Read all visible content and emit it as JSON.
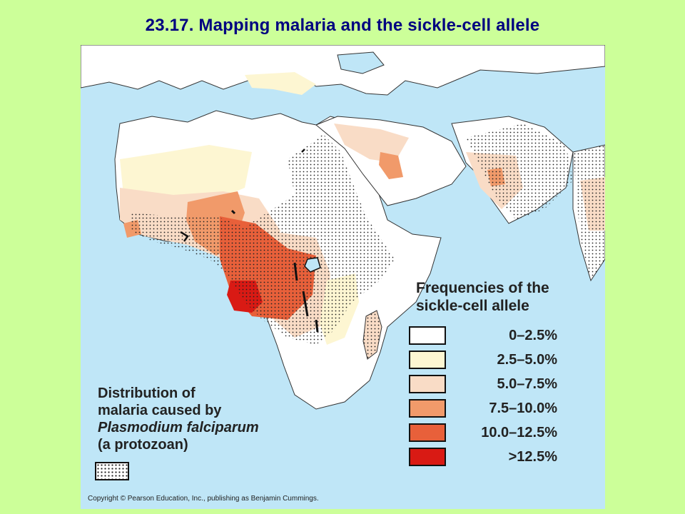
{
  "title": "23.17.  Mapping malaria and the sickle-cell allele",
  "legend": {
    "title_line1": "Frequencies of the",
    "title_line2": "sickle-cell allele",
    "items": [
      {
        "label": "0–2.5%",
        "color": "#ffffff"
      },
      {
        "label": "2.5–5.0%",
        "color": "#fdf6d2"
      },
      {
        "label": "5.0–7.5%",
        "color": "#f9dcc6"
      },
      {
        "label": "7.5–10.0%",
        "color": "#f19a6a"
      },
      {
        "label": "10.0–12.5%",
        "color": "#e8603a"
      },
      {
        "label": ">12.5%",
        "color": "#d91a14"
      }
    ]
  },
  "distribution": {
    "line1": "Distribution of",
    "line2": "malaria caused by",
    "line3": "Plasmodium falciparum",
    "line4": "(a protozoan)"
  },
  "copyright": "Copyright © Pearson Education, Inc., publishing as Benjamin Cummings."
}
